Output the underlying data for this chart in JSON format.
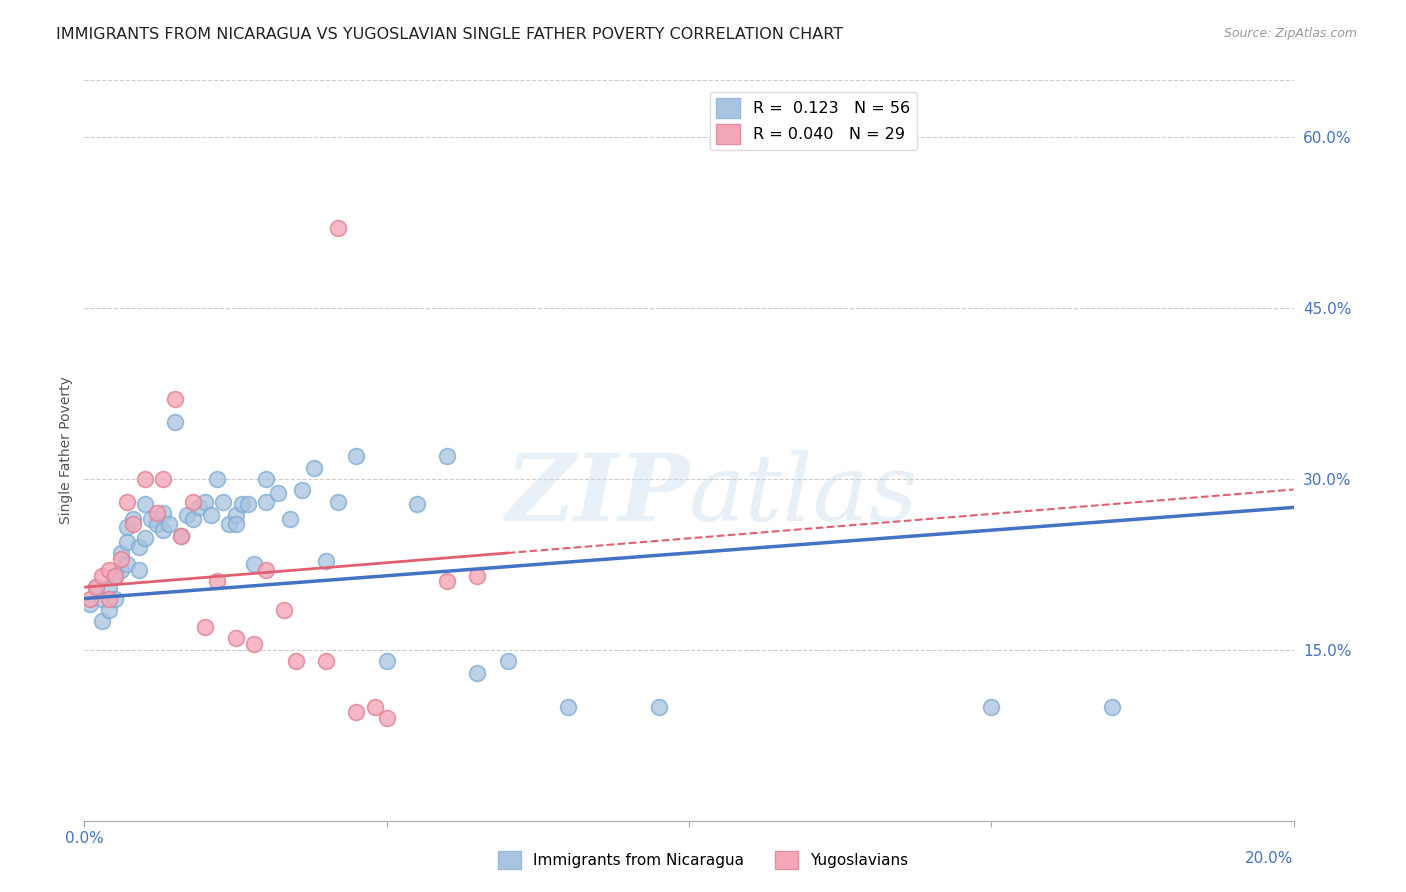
{
  "title": "IMMIGRANTS FROM NICARAGUA VS YUGOSLAVIAN SINGLE FATHER POVERTY CORRELATION CHART",
  "source": "Source: ZipAtlas.com",
  "ylabel": "Single Father Poverty",
  "xlim": [
    0.0,
    0.2
  ],
  "ylim": [
    0.0,
    0.65
  ],
  "y_ticks": [
    0.15,
    0.3,
    0.45,
    0.6
  ],
  "y_tick_labels": [
    "15.0%",
    "30.0%",
    "45.0%",
    "60.0%"
  ],
  "legend_label1": "Immigrants from Nicaragua",
  "legend_label2": "Yugoslavians",
  "R1": 0.123,
  "N1": 56,
  "R2": 0.04,
  "N2": 29,
  "color1": "#a8c4e0",
  "color2": "#f4a7b9",
  "line_color1": "#4472c4",
  "line_color2": "#e06070",
  "watermark": "ZIPatlas",
  "background_color": "#ffffff",
  "grid_color": "#cccccc",
  "title_color": "#222222",
  "right_axis_color": "#4472c4",
  "line1_x0": 0.0,
  "line1_y0": 0.195,
  "line1_x1": 0.2,
  "line1_y1": 0.275,
  "line2_x0": 0.0,
  "line2_y0": 0.205,
  "line2_x1": 0.07,
  "line2_y1": 0.235,
  "nic_x": [
    0.001,
    0.002,
    0.003,
    0.003,
    0.004,
    0.004,
    0.005,
    0.005,
    0.006,
    0.006,
    0.007,
    0.007,
    0.007,
    0.008,
    0.009,
    0.009,
    0.01,
    0.01,
    0.011,
    0.012,
    0.013,
    0.013,
    0.014,
    0.015,
    0.016,
    0.017,
    0.018,
    0.019,
    0.02,
    0.021,
    0.022,
    0.023,
    0.024,
    0.025,
    0.025,
    0.026,
    0.027,
    0.028,
    0.03,
    0.03,
    0.032,
    0.034,
    0.036,
    0.038,
    0.04,
    0.042,
    0.045,
    0.05,
    0.055,
    0.06,
    0.065,
    0.07,
    0.08,
    0.095,
    0.15,
    0.17
  ],
  "nic_y": [
    0.19,
    0.205,
    0.175,
    0.195,
    0.185,
    0.205,
    0.215,
    0.195,
    0.235,
    0.22,
    0.258,
    0.245,
    0.225,
    0.265,
    0.24,
    0.22,
    0.278,
    0.248,
    0.265,
    0.26,
    0.27,
    0.255,
    0.26,
    0.35,
    0.25,
    0.268,
    0.265,
    0.275,
    0.28,
    0.268,
    0.3,
    0.28,
    0.26,
    0.268,
    0.26,
    0.278,
    0.278,
    0.225,
    0.3,
    0.28,
    0.288,
    0.265,
    0.29,
    0.31,
    0.228,
    0.28,
    0.32,
    0.14,
    0.278,
    0.32,
    0.13,
    0.14,
    0.1,
    0.1,
    0.1,
    0.1
  ],
  "yug_x": [
    0.001,
    0.002,
    0.003,
    0.004,
    0.004,
    0.005,
    0.006,
    0.007,
    0.008,
    0.01,
    0.012,
    0.013,
    0.015,
    0.016,
    0.018,
    0.02,
    0.022,
    0.025,
    0.028,
    0.03,
    0.033,
    0.035,
    0.04,
    0.042,
    0.045,
    0.048,
    0.05,
    0.06,
    0.065
  ],
  "yug_y": [
    0.195,
    0.205,
    0.215,
    0.22,
    0.195,
    0.215,
    0.23,
    0.28,
    0.26,
    0.3,
    0.27,
    0.3,
    0.37,
    0.25,
    0.28,
    0.17,
    0.21,
    0.16,
    0.155,
    0.22,
    0.185,
    0.14,
    0.14,
    0.52,
    0.095,
    0.1,
    0.09,
    0.21,
    0.215
  ]
}
